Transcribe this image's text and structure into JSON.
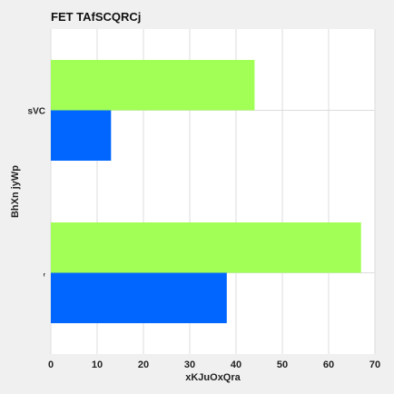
{
  "chart_data": {
    "type": "bar",
    "orientation": "horizontal",
    "title": "FET TAfSCQRCj",
    "xlabel": "xKJuOxQra",
    "ylabel": "BhXn jyWp",
    "categories": [
      "r",
      "sVC"
    ],
    "series": [
      {
        "values": [
          38,
          13
        ],
        "color": "#0066ff"
      },
      {
        "values": [
          67,
          44
        ],
        "color": "#a1ff55"
      }
    ],
    "xlim": [
      0,
      70
    ],
    "xticks": [
      0,
      10,
      20,
      30,
      40,
      50,
      60,
      70
    ],
    "grid": true
  }
}
